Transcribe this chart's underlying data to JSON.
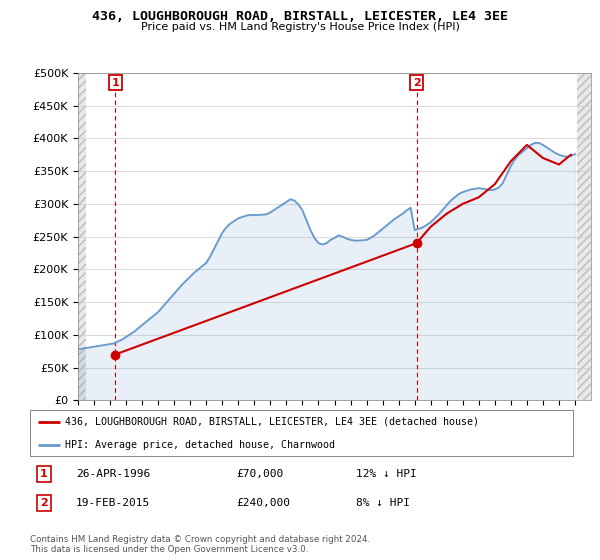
{
  "title": "436, LOUGHBOROUGH ROAD, BIRSTALL, LEICESTER, LE4 3EE",
  "subtitle": "Price paid vs. HM Land Registry's House Price Index (HPI)",
  "legend_line1": "436, LOUGHBOROUGH ROAD, BIRSTALL, LEICESTER, LE4 3EE (detached house)",
  "legend_line2": "HPI: Average price, detached house, Charnwood",
  "copyright": "Contains HM Land Registry data © Crown copyright and database right 2024.\nThis data is licensed under the Open Government Licence v3.0.",
  "point1_date": "26-APR-1996",
  "point1_price": "£70,000",
  "point1_hpi": "12% ↓ HPI",
  "point2_date": "19-FEB-2015",
  "point2_price": "£240,000",
  "point2_hpi": "8% ↓ HPI",
  "red_color": "#cc0000",
  "blue_color": "#6699cc",
  "ylim": [
    0,
    500000
  ],
  "ytick_step": 50000,
  "xmin": 1994.0,
  "xmax": 2026.0,
  "point1_x": 1996.32,
  "point1_y": 70000,
  "point2_x": 2015.12,
  "point2_y": 240000,
  "hpi_x": [
    1994.0,
    1994.25,
    1994.5,
    1994.75,
    1995.0,
    1995.25,
    1995.5,
    1995.75,
    1996.0,
    1996.25,
    1996.5,
    1996.75,
    1997.0,
    1997.25,
    1997.5,
    1997.75,
    1998.0,
    1998.25,
    1998.5,
    1998.75,
    1999.0,
    1999.25,
    1999.5,
    1999.75,
    2000.0,
    2000.25,
    2000.5,
    2000.75,
    2001.0,
    2001.25,
    2001.5,
    2001.75,
    2002.0,
    2002.25,
    2002.5,
    2002.75,
    2003.0,
    2003.25,
    2003.5,
    2003.75,
    2004.0,
    2004.25,
    2004.5,
    2004.75,
    2005.0,
    2005.25,
    2005.5,
    2005.75,
    2006.0,
    2006.25,
    2006.5,
    2006.75,
    2007.0,
    2007.25,
    2007.5,
    2007.75,
    2008.0,
    2008.25,
    2008.5,
    2008.75,
    2009.0,
    2009.25,
    2009.5,
    2009.75,
    2010.0,
    2010.25,
    2010.5,
    2010.75,
    2011.0,
    2011.25,
    2011.5,
    2011.75,
    2012.0,
    2012.25,
    2012.5,
    2012.75,
    2013.0,
    2013.25,
    2013.5,
    2013.75,
    2014.0,
    2014.25,
    2014.5,
    2014.75,
    2015.0,
    2015.25,
    2015.5,
    2015.75,
    2016.0,
    2016.25,
    2016.5,
    2016.75,
    2017.0,
    2017.25,
    2017.5,
    2017.75,
    2018.0,
    2018.25,
    2018.5,
    2018.75,
    2019.0,
    2019.25,
    2019.5,
    2019.75,
    2020.0,
    2020.25,
    2020.5,
    2020.75,
    2021.0,
    2021.25,
    2021.5,
    2021.75,
    2022.0,
    2022.25,
    2022.5,
    2022.75,
    2023.0,
    2023.25,
    2023.5,
    2023.75,
    2024.0,
    2024.25,
    2024.5,
    2024.75,
    2025.0
  ],
  "hpi_y": [
    78000,
    79000,
    80000,
    81000,
    82000,
    83000,
    84000,
    85000,
    86000,
    87000,
    90000,
    93000,
    97000,
    101000,
    105000,
    110000,
    115000,
    120000,
    125000,
    130000,
    135000,
    142000,
    149000,
    156000,
    163000,
    170000,
    177000,
    183000,
    189000,
    195000,
    200000,
    205000,
    210000,
    220000,
    232000,
    244000,
    256000,
    264000,
    270000,
    274000,
    278000,
    280000,
    282000,
    283000,
    283000,
    283000,
    283500,
    284000,
    287000,
    291000,
    295000,
    299000,
    303000,
    307000,
    305000,
    299000,
    290000,
    275000,
    260000,
    248000,
    240000,
    238000,
    240000,
    245000,
    248000,
    252000,
    250000,
    247000,
    245000,
    244000,
    244000,
    244500,
    245000,
    248000,
    252000,
    257000,
    262000,
    267000,
    272000,
    277000,
    281000,
    285000,
    290000,
    294000,
    260000,
    262000,
    264000,
    268000,
    272000,
    278000,
    284000,
    291000,
    298000,
    305000,
    310000,
    315000,
    318000,
    320000,
    322000,
    323000,
    324000,
    323000,
    322000,
    321000,
    322000,
    325000,
    332000,
    345000,
    358000,
    368000,
    375000,
    380000,
    385000,
    390000,
    393000,
    393000,
    390000,
    386000,
    382000,
    378000,
    375000,
    373000,
    372000,
    373000,
    376000
  ],
  "red_line_x": [
    1996.32,
    2015.12,
    2016.0,
    2017.0,
    2018.0,
    2019.0,
    2020.0,
    2021.0,
    2022.0,
    2023.0,
    2024.0,
    2024.75
  ],
  "red_line_y": [
    70000,
    240000,
    265000,
    285000,
    300000,
    310000,
    330000,
    365000,
    390000,
    370000,
    360000,
    375000
  ]
}
